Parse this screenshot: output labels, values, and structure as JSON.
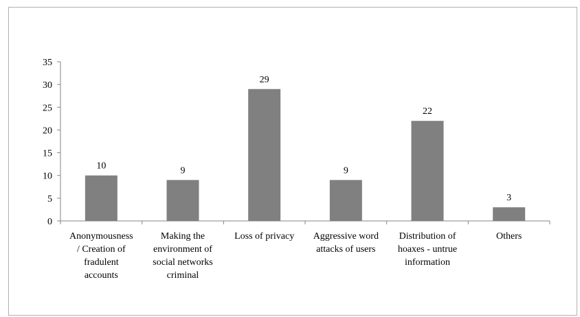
{
  "chart_data": {
    "type": "bar",
    "categories": [
      [
        "Anonymousness",
        "/ Creation of",
        "fradulent",
        "accounts"
      ],
      [
        "Making the",
        "environment of",
        "social networks",
        "criminal"
      ],
      [
        "Loss of privacy"
      ],
      [
        "Aggressive word",
        "attacks of users"
      ],
      [
        "Distribution of",
        "hoaxes - untrue",
        "information"
      ],
      [
        "Others"
      ]
    ],
    "values": [
      10,
      9,
      29,
      9,
      22,
      3
    ],
    "data_labels": [
      "10",
      "9",
      "29",
      "9",
      "22",
      "3"
    ],
    "ylim": [
      0,
      35
    ],
    "yticks": [
      0,
      5,
      10,
      15,
      20,
      25,
      30,
      35
    ],
    "ytick_labels": [
      "0",
      "5",
      "10",
      "15",
      "20",
      "25",
      "30",
      "35"
    ],
    "title": "",
    "xlabel": "",
    "ylabel": "",
    "grid": false,
    "legend": "none",
    "colors": {
      "bar": "#808080",
      "axis": "#868686",
      "text": "#000000"
    }
  }
}
